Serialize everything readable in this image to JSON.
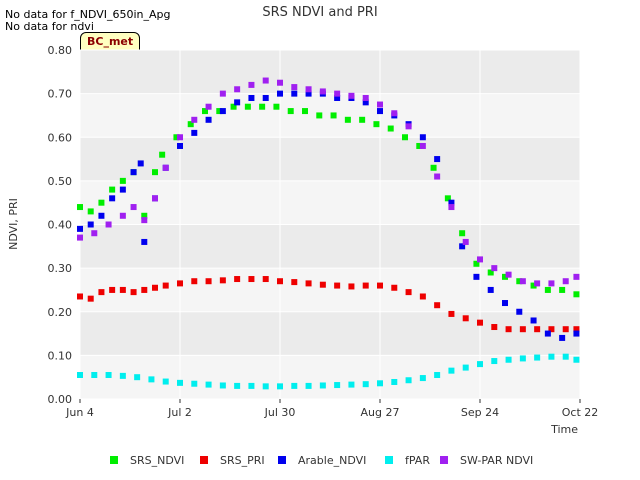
{
  "notes": [
    "No data for f_NDVI_650in_Apg",
    "No data for ndvi"
  ],
  "tag": "BC_met",
  "colors": {
    "plot_bg": "#ebebeb",
    "plot_bg_alt": "#f5f5f5",
    "grid": "#ffffff"
  },
  "chart_data": {
    "type": "scatter",
    "title": "SRS NDVI and PRI",
    "xlabel": "Time",
    "ylabel": "NDVI, PRI",
    "xlim": [
      "2023-06-04",
      "2023-10-22"
    ],
    "ylim": [
      0.0,
      0.8
    ],
    "x_ticks": [
      {
        "date": "2023-06-04",
        "label": "Jun 4"
      },
      {
        "date": "2023-07-02",
        "label": "Jul 2"
      },
      {
        "date": "2023-07-30",
        "label": "Jul 30"
      },
      {
        "date": "2023-08-27",
        "label": "Aug 27"
      },
      {
        "date": "2023-09-24",
        "label": "Sep 24"
      },
      {
        "date": "2023-10-22",
        "label": "Oct 22"
      }
    ],
    "y_ticks": [
      "0.00",
      "0.10",
      "0.20",
      "0.30",
      "0.40",
      "0.50",
      "0.60",
      "0.70",
      "0.80"
    ],
    "legend_position": "bottom",
    "grid": true,
    "series": [
      {
        "name": "SRS_NDVI",
        "color": "#00ee00",
        "points": [
          [
            "2023-06-04",
            0.44
          ],
          [
            "2023-06-07",
            0.43
          ],
          [
            "2023-06-10",
            0.45
          ],
          [
            "2023-06-13",
            0.48
          ],
          [
            "2023-06-16",
            0.5
          ],
          [
            "2023-06-19",
            0.52
          ],
          [
            "2023-06-22",
            0.42
          ],
          [
            "2023-06-25",
            0.52
          ],
          [
            "2023-06-27",
            0.56
          ],
          [
            "2023-07-01",
            0.6
          ],
          [
            "2023-07-05",
            0.63
          ],
          [
            "2023-07-09",
            0.66
          ],
          [
            "2023-07-13",
            0.66
          ],
          [
            "2023-07-17",
            0.67
          ],
          [
            "2023-07-21",
            0.67
          ],
          [
            "2023-07-25",
            0.67
          ],
          [
            "2023-07-29",
            0.67
          ],
          [
            "2023-08-02",
            0.66
          ],
          [
            "2023-08-06",
            0.66
          ],
          [
            "2023-08-10",
            0.65
          ],
          [
            "2023-08-14",
            0.65
          ],
          [
            "2023-08-18",
            0.64
          ],
          [
            "2023-08-22",
            0.64
          ],
          [
            "2023-08-26",
            0.63
          ],
          [
            "2023-08-30",
            0.62
          ],
          [
            "2023-09-03",
            0.6
          ],
          [
            "2023-09-07",
            0.58
          ],
          [
            "2023-09-11",
            0.53
          ],
          [
            "2023-09-15",
            0.46
          ],
          [
            "2023-09-19",
            0.38
          ],
          [
            "2023-09-23",
            0.31
          ],
          [
            "2023-09-27",
            0.29
          ],
          [
            "2023-10-01",
            0.28
          ],
          [
            "2023-10-05",
            0.27
          ],
          [
            "2023-10-09",
            0.26
          ],
          [
            "2023-10-13",
            0.25
          ],
          [
            "2023-10-17",
            0.25
          ],
          [
            "2023-10-21",
            0.24
          ]
        ]
      },
      {
        "name": "SRS_PRI",
        "color": "#ee0000",
        "points": [
          [
            "2023-06-04",
            0.235
          ],
          [
            "2023-06-07",
            0.23
          ],
          [
            "2023-06-10",
            0.245
          ],
          [
            "2023-06-13",
            0.25
          ],
          [
            "2023-06-16",
            0.25
          ],
          [
            "2023-06-19",
            0.245
          ],
          [
            "2023-06-22",
            0.25
          ],
          [
            "2023-06-25",
            0.255
          ],
          [
            "2023-06-28",
            0.26
          ],
          [
            "2023-07-02",
            0.265
          ],
          [
            "2023-07-06",
            0.27
          ],
          [
            "2023-07-10",
            0.27
          ],
          [
            "2023-07-14",
            0.272
          ],
          [
            "2023-07-18",
            0.275
          ],
          [
            "2023-07-22",
            0.275
          ],
          [
            "2023-07-26",
            0.275
          ],
          [
            "2023-07-30",
            0.27
          ],
          [
            "2023-08-03",
            0.268
          ],
          [
            "2023-08-07",
            0.265
          ],
          [
            "2023-08-11",
            0.262
          ],
          [
            "2023-08-15",
            0.26
          ],
          [
            "2023-08-19",
            0.258
          ],
          [
            "2023-08-23",
            0.26
          ],
          [
            "2023-08-27",
            0.26
          ],
          [
            "2023-08-31",
            0.255
          ],
          [
            "2023-09-04",
            0.245
          ],
          [
            "2023-09-08",
            0.235
          ],
          [
            "2023-09-12",
            0.215
          ],
          [
            "2023-09-16",
            0.195
          ],
          [
            "2023-09-20",
            0.185
          ],
          [
            "2023-09-24",
            0.175
          ],
          [
            "2023-09-28",
            0.165
          ],
          [
            "2023-10-02",
            0.16
          ],
          [
            "2023-10-06",
            0.16
          ],
          [
            "2023-10-10",
            0.16
          ],
          [
            "2023-10-14",
            0.16
          ],
          [
            "2023-10-18",
            0.16
          ],
          [
            "2023-10-21",
            0.16
          ]
        ]
      },
      {
        "name": "Arable_NDVI",
        "color": "#0000ee",
        "points": [
          [
            "2023-06-04",
            0.39
          ],
          [
            "2023-06-07",
            0.4
          ],
          [
            "2023-06-10",
            0.42
          ],
          [
            "2023-06-13",
            0.46
          ],
          [
            "2023-06-16",
            0.48
          ],
          [
            "2023-06-19",
            0.52
          ],
          [
            "2023-06-21",
            0.54
          ],
          [
            "2023-06-22",
            0.36
          ],
          [
            "2023-06-25",
            0.46
          ],
          [
            "2023-06-28",
            0.53
          ],
          [
            "2023-07-02",
            0.58
          ],
          [
            "2023-07-06",
            0.61
          ],
          [
            "2023-07-10",
            0.64
          ],
          [
            "2023-07-14",
            0.66
          ],
          [
            "2023-07-18",
            0.68
          ],
          [
            "2023-07-22",
            0.69
          ],
          [
            "2023-07-26",
            0.69
          ],
          [
            "2023-07-30",
            0.7
          ],
          [
            "2023-08-03",
            0.7
          ],
          [
            "2023-08-07",
            0.7
          ],
          [
            "2023-08-11",
            0.7
          ],
          [
            "2023-08-15",
            0.69
          ],
          [
            "2023-08-19",
            0.69
          ],
          [
            "2023-08-23",
            0.68
          ],
          [
            "2023-08-27",
            0.66
          ],
          [
            "2023-08-31",
            0.65
          ],
          [
            "2023-09-04",
            0.63
          ],
          [
            "2023-09-08",
            0.6
          ],
          [
            "2023-09-12",
            0.55
          ],
          [
            "2023-09-16",
            0.45
          ],
          [
            "2023-09-19",
            0.35
          ],
          [
            "2023-09-23",
            0.28
          ],
          [
            "2023-09-27",
            0.25
          ],
          [
            "2023-10-01",
            0.22
          ],
          [
            "2023-10-05",
            0.2
          ],
          [
            "2023-10-09",
            0.18
          ],
          [
            "2023-10-13",
            0.15
          ],
          [
            "2023-10-17",
            0.14
          ],
          [
            "2023-10-21",
            0.15
          ]
        ]
      },
      {
        "name": "fPAR",
        "color": "#00eeee",
        "points": [
          [
            "2023-06-04",
            0.055
          ],
          [
            "2023-06-08",
            0.055
          ],
          [
            "2023-06-12",
            0.055
          ],
          [
            "2023-06-16",
            0.053
          ],
          [
            "2023-06-20",
            0.05
          ],
          [
            "2023-06-24",
            0.045
          ],
          [
            "2023-06-28",
            0.04
          ],
          [
            "2023-07-02",
            0.037
          ],
          [
            "2023-07-06",
            0.035
          ],
          [
            "2023-07-10",
            0.033
          ],
          [
            "2023-07-14",
            0.031
          ],
          [
            "2023-07-18",
            0.03
          ],
          [
            "2023-07-22",
            0.03
          ],
          [
            "2023-07-26",
            0.029
          ],
          [
            "2023-07-30",
            0.029
          ],
          [
            "2023-08-03",
            0.03
          ],
          [
            "2023-08-07",
            0.03
          ],
          [
            "2023-08-11",
            0.031
          ],
          [
            "2023-08-15",
            0.032
          ],
          [
            "2023-08-19",
            0.033
          ],
          [
            "2023-08-23",
            0.034
          ],
          [
            "2023-08-27",
            0.036
          ],
          [
            "2023-08-31",
            0.039
          ],
          [
            "2023-09-04",
            0.043
          ],
          [
            "2023-09-08",
            0.048
          ],
          [
            "2023-09-12",
            0.055
          ],
          [
            "2023-09-16",
            0.065
          ],
          [
            "2023-09-20",
            0.072
          ],
          [
            "2023-09-24",
            0.08
          ],
          [
            "2023-09-28",
            0.087
          ],
          [
            "2023-10-02",
            0.09
          ],
          [
            "2023-10-06",
            0.093
          ],
          [
            "2023-10-10",
            0.095
          ],
          [
            "2023-10-14",
            0.097
          ],
          [
            "2023-10-18",
            0.097
          ],
          [
            "2023-10-21",
            0.09
          ]
        ]
      },
      {
        "name": "SW-PAR NDVI",
        "color": "#a020f0",
        "points": [
          [
            "2023-06-04",
            0.37
          ],
          [
            "2023-06-08",
            0.38
          ],
          [
            "2023-06-12",
            0.4
          ],
          [
            "2023-06-16",
            0.42
          ],
          [
            "2023-06-19",
            0.44
          ],
          [
            "2023-06-22",
            0.41
          ],
          [
            "2023-06-25",
            0.46
          ],
          [
            "2023-06-28",
            0.53
          ],
          [
            "2023-07-02",
            0.6
          ],
          [
            "2023-07-06",
            0.64
          ],
          [
            "2023-07-10",
            0.67
          ],
          [
            "2023-07-14",
            0.7
          ],
          [
            "2023-07-18",
            0.71
          ],
          [
            "2023-07-22",
            0.72
          ],
          [
            "2023-07-26",
            0.73
          ],
          [
            "2023-07-30",
            0.725
          ],
          [
            "2023-08-03",
            0.715
          ],
          [
            "2023-08-07",
            0.71
          ],
          [
            "2023-08-11",
            0.705
          ],
          [
            "2023-08-15",
            0.7
          ],
          [
            "2023-08-19",
            0.695
          ],
          [
            "2023-08-23",
            0.69
          ],
          [
            "2023-08-27",
            0.675
          ],
          [
            "2023-08-31",
            0.655
          ],
          [
            "2023-09-04",
            0.625
          ],
          [
            "2023-09-08",
            0.58
          ],
          [
            "2023-09-12",
            0.51
          ],
          [
            "2023-09-16",
            0.44
          ],
          [
            "2023-09-20",
            0.36
          ],
          [
            "2023-09-24",
            0.32
          ],
          [
            "2023-09-28",
            0.3
          ],
          [
            "2023-10-02",
            0.285
          ],
          [
            "2023-10-06",
            0.27
          ],
          [
            "2023-10-10",
            0.265
          ],
          [
            "2023-10-14",
            0.265
          ],
          [
            "2023-10-18",
            0.27
          ],
          [
            "2023-10-21",
            0.28
          ]
        ]
      }
    ]
  }
}
